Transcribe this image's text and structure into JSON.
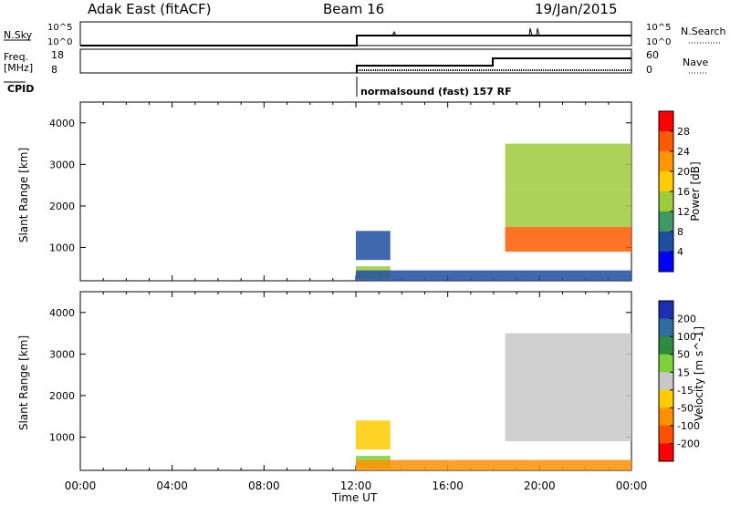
{
  "header": {
    "station": "Adak East (fitACF)",
    "beam": "Beam 16",
    "date": "19/Jan/2015"
  },
  "aux_panels": {
    "nsky_label": "N.Sky",
    "nsky_ticks": [
      "10^5",
      "10^0"
    ],
    "nsearch_label": "N.Search",
    "nsearch_ticks": [
      "10^5",
      "10^0"
    ],
    "freq_label": "Freq.",
    "freq_unit": "[MHz]",
    "freq_ticks": [
      "18",
      "8"
    ],
    "nave_label": "Nave",
    "nave_ticks": [
      "60",
      "0"
    ],
    "cpid_label": "CPID",
    "cpid_text": "normalsound (fast) 157 RF"
  },
  "axis": {
    "xlabel": "Time UT",
    "ylabel": "Slant Range [km]"
  },
  "colorbars": {
    "power": {
      "label": "Power [dB]",
      "ticks": [
        "28",
        "24",
        "20",
        "16",
        "12",
        "8",
        "4"
      ],
      "colors": [
        "#ff0000",
        "#ff5a00",
        "#ff9600",
        "#ffcc00",
        "#9ecb3a",
        "#3f9a62",
        "#1f4ea0",
        "#0000ff"
      ]
    },
    "velocity": {
      "label": "Velocity [m s^-1]",
      "ticks": [
        "200",
        "100",
        "50",
        "15",
        "-15",
        "-50",
        "-100",
        "-200"
      ],
      "colors": [
        "#1c2fb0",
        "#2d6ea0",
        "#2e8a3c",
        "#7dd23a",
        "#c8c8c8",
        "#ffcc00",
        "#ff9000",
        "#ff5000",
        "#ff0000"
      ]
    }
  },
  "chart_data": [
    {
      "type": "heatmap",
      "title": "Power",
      "x_unit": "hours UT",
      "xlim": [
        0,
        24
      ],
      "ylim": [
        200,
        4500
      ],
      "x_ticks": [
        "00:00",
        "04:00",
        "08:00",
        "12:00",
        "16:00",
        "20:00",
        "00:00"
      ],
      "y_ticks": [
        1000,
        2000,
        3000,
        4000
      ],
      "colorbar_range": [
        0,
        32
      ],
      "regions": [
        {
          "t0": 12.0,
          "t1": 13.5,
          "r0": 700,
          "r1": 1400,
          "value": 5
        },
        {
          "t0": 12.0,
          "t1": 13.5,
          "r0": 250,
          "r1": 550,
          "value": 13
        },
        {
          "t0": 12.0,
          "t1": 24.0,
          "r0": 200,
          "r1": 450,
          "value": 6
        },
        {
          "t0": 18.5,
          "t1": 24.0,
          "r0": 900,
          "r1": 1500,
          "value": 28
        },
        {
          "t0": 18.5,
          "t1": 24.0,
          "r0": 1500,
          "r1": 2400,
          "value": 15
        },
        {
          "t0": 18.5,
          "t1": 24.0,
          "r0": 2400,
          "r1": 3500,
          "value": 16
        }
      ]
    },
    {
      "type": "heatmap",
      "title": "Velocity",
      "x_unit": "hours UT",
      "xlim": [
        0,
        24
      ],
      "ylim": [
        200,
        4500
      ],
      "x_ticks": [
        "00:00",
        "04:00",
        "08:00",
        "12:00",
        "16:00",
        "20:00",
        "00:00"
      ],
      "y_ticks": [
        1000,
        2000,
        3000,
        4000
      ],
      "colorbar_range": [
        -250,
        250
      ],
      "regions": [
        {
          "t0": 12.0,
          "t1": 13.5,
          "r0": 700,
          "r1": 1400,
          "value": -20
        },
        {
          "t0": 12.0,
          "t1": 13.5,
          "r0": 250,
          "r1": 550,
          "value": 30
        },
        {
          "t0": 12.0,
          "t1": 24.0,
          "r0": 200,
          "r1": 450,
          "value": -60
        },
        {
          "t0": 18.5,
          "t1": 24.0,
          "r0": 900,
          "r1": 3500,
          "value": 0
        }
      ]
    }
  ]
}
